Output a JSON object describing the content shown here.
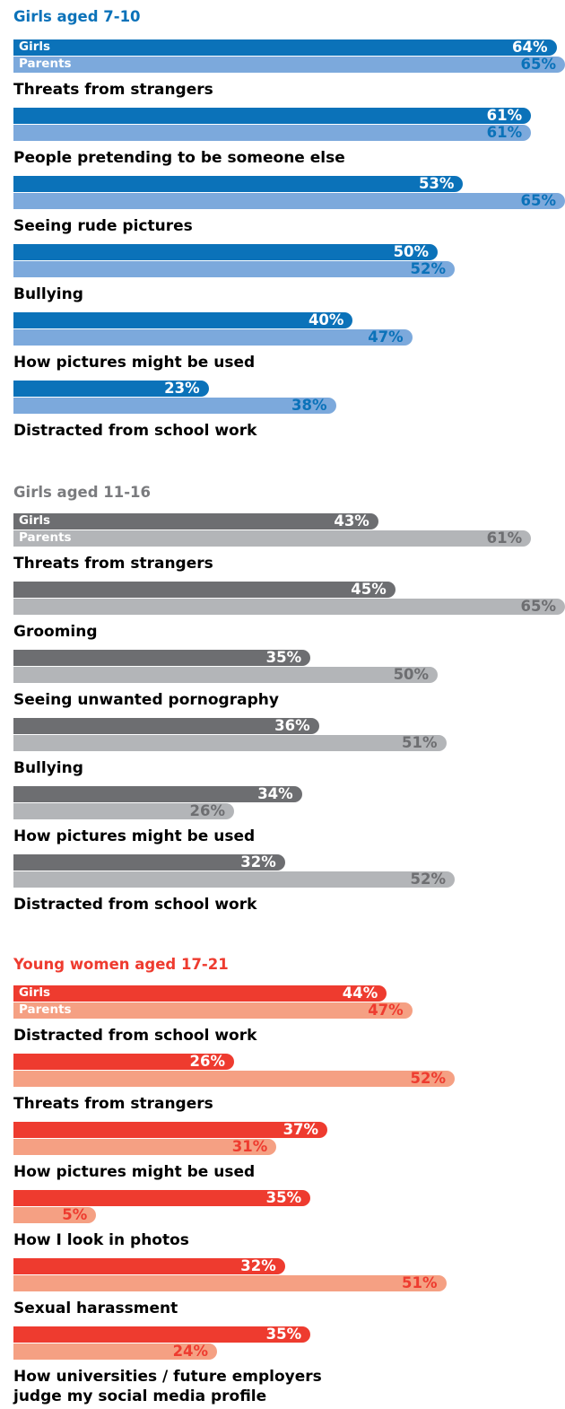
{
  "colors": {
    "g1_dark": "#0b72b9",
    "g1_light": "#7ca9dc",
    "g1_title": "#0b72b9",
    "g1_light_value": "#0b72b9",
    "g2_dark": "#6d6e71",
    "g2_light": "#b3b5b8",
    "g2_title": "#7a7b7e",
    "g2_light_value": "#6d6e71",
    "g3_dark": "#ee3b2f",
    "g3_light": "#f5a083",
    "g3_title": "#ee3b2f",
    "g3_light_value": "#ee3b2f"
  },
  "chart_data": [
    {
      "type": "bar",
      "title": "Girls aged 7-10",
      "legend": [
        "Girls",
        "Parents"
      ],
      "xlim": [
        0,
        65
      ],
      "categories": [
        "Threats from strangers",
        "People pretending to be someone else",
        "Seeing rude pictures",
        "Bullying",
        "How pictures might be used",
        "Distracted from school work"
      ],
      "series": [
        {
          "name": "Girls",
          "values": [
            64,
            61,
            53,
            50,
            40,
            23
          ]
        },
        {
          "name": "Parents",
          "values": [
            65,
            61,
            65,
            52,
            47,
            38
          ]
        }
      ]
    },
    {
      "type": "bar",
      "title": "Girls aged 11-16",
      "legend": [
        "Girls",
        "Parents"
      ],
      "xlim": [
        0,
        65
      ],
      "categories": [
        "Threats from strangers",
        "Grooming",
        "Seeing unwanted pornography",
        "Bullying",
        "How pictures might be used",
        "Distracted from school work"
      ],
      "series": [
        {
          "name": "Girls",
          "values": [
            43,
            45,
            35,
            36,
            34,
            32
          ]
        },
        {
          "name": "Parents",
          "values": [
            61,
            65,
            50,
            51,
            26,
            52
          ]
        }
      ]
    },
    {
      "type": "bar",
      "title": "Young women aged 17-21",
      "legend": [
        "Girls",
        "Parents"
      ],
      "xlim": [
        0,
        65
      ],
      "categories": [
        "Distracted from school work",
        "Threats from strangers",
        "How pictures might be used",
        "How I look in photos",
        "Sexual harassment",
        "How universities / future employers\njudge my social media profile"
      ],
      "series": [
        {
          "name": "Girls",
          "values": [
            44,
            26,
            37,
            35,
            32,
            35
          ]
        },
        {
          "name": "Parents",
          "values": [
            47,
            52,
            31,
            5,
            51,
            24
          ]
        }
      ]
    }
  ]
}
